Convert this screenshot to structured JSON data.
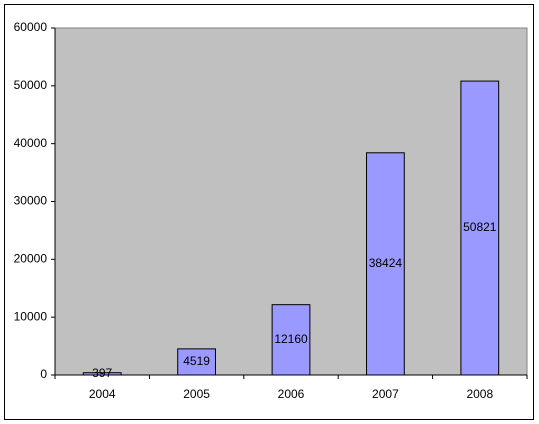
{
  "chart_data": {
    "type": "bar",
    "categories": [
      "2004",
      "2005",
      "2006",
      "2007",
      "2008"
    ],
    "values": [
      397,
      4519,
      12160,
      38424,
      50821
    ],
    "color": "#9999ff",
    "ylim": [
      0,
      60000
    ],
    "yticks": [
      0,
      10000,
      20000,
      30000,
      40000,
      50000,
      60000
    ],
    "grid": false,
    "plot_background": "#c0c0c0"
  }
}
